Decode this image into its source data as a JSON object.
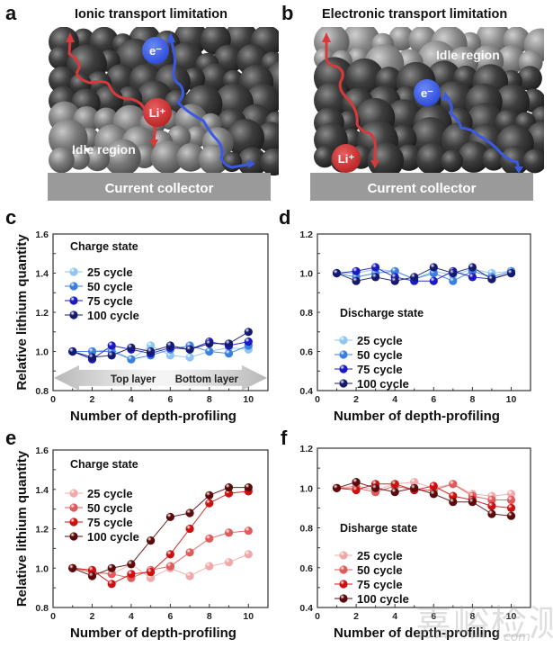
{
  "panels": {
    "a": {
      "letter": "a",
      "title": "Ionic transport limitation",
      "idle_label": "Idle region",
      "collector_label": "Current collector",
      "ion_label": "Li⁺",
      "electron_label": "e⁻"
    },
    "b": {
      "letter": "b",
      "title": "Electronic transport limitation",
      "idle_label": "Idle region",
      "collector_label": "Current collector",
      "ion_label": "Li⁺",
      "electron_label": "e⁻"
    },
    "c": {
      "letter": "c"
    },
    "d": {
      "letter": "d"
    },
    "e": {
      "letter": "e"
    },
    "f": {
      "letter": "f"
    }
  },
  "colors": {
    "blue_series": [
      "#8ec5f2",
      "#3a7fe0",
      "#1a1ac0",
      "#141a6e"
    ],
    "red_series": [
      "#f0a8a8",
      "#e05a5a",
      "#cc1010",
      "#5a0a0a"
    ],
    "ion_arrow": "#d63a3a",
    "electron_arrow": "#3a5ae6",
    "collector": "#9a9a9a"
  },
  "watermark": {
    "text": "嘉峪检测网",
    "sub": "com"
  },
  "chart_data": [
    {
      "id": "c",
      "type": "line",
      "title": "Charge state",
      "xlabel": "Number of depth-profiling",
      "ylabel": "Relative lithium quantity",
      "xlim": [
        0,
        11
      ],
      "ylim": [
        0.8,
        1.6
      ],
      "xticks": [
        0,
        2,
        4,
        6,
        8,
        10
      ],
      "yticks": [
        0.8,
        1.0,
        1.2,
        1.4,
        1.6
      ],
      "ytick_labels": [
        "0.8",
        "1.0",
        "1.2",
        "1.4",
        "1.6"
      ],
      "legend_position": "top-left",
      "grid": false,
      "annotation": {
        "left": "Top layer",
        "right": "Bottom layer"
      },
      "x": [
        1,
        2,
        3,
        4,
        5,
        6,
        7,
        8,
        9,
        10
      ],
      "series": [
        {
          "name": "25 cycle",
          "values": [
            1.0,
            1.0,
            1.01,
            0.96,
            1.03,
            0.98,
            0.97,
            1.0,
            1.02,
            1.01
          ]
        },
        {
          "name": "50 cycle",
          "values": [
            1.0,
            1.0,
            1.0,
            0.96,
            0.98,
            1.01,
            1.03,
            1.0,
            0.99,
            1.03
          ]
        },
        {
          "name": "75 cycle",
          "values": [
            1.0,
            0.96,
            1.03,
            1.01,
            0.99,
            1.02,
            1.01,
            1.05,
            1.03,
            1.05
          ]
        },
        {
          "name": "100 cycle",
          "values": [
            1.0,
            0.97,
            0.98,
            1.02,
            1.0,
            1.03,
            1.01,
            1.04,
            1.04,
            1.1
          ]
        }
      ]
    },
    {
      "id": "d",
      "type": "line",
      "title": "Discharge state",
      "xlabel": "Number of depth-profiling",
      "ylabel": "",
      "xlim": [
        0,
        11
      ],
      "ylim": [
        0.4,
        1.2
      ],
      "xticks": [
        0,
        2,
        4,
        6,
        8,
        10
      ],
      "yticks": [
        0.4,
        0.6,
        0.8,
        1.0,
        1.2
      ],
      "ytick_labels": [
        "0.4",
        "0.6",
        "0.8",
        "1.0",
        "1.2"
      ],
      "legend_position": "bottom-left",
      "grid": false,
      "x": [
        1,
        2,
        3,
        4,
        5,
        6,
        7,
        8,
        9,
        10
      ],
      "series": [
        {
          "name": "25 cycle",
          "values": [
            1.0,
            1.0,
            1.02,
            1.01,
            0.97,
            1.01,
            0.99,
            1.02,
            1.0,
            1.01
          ]
        },
        {
          "name": "50 cycle",
          "values": [
            1.0,
            0.98,
            1.0,
            1.01,
            0.97,
            1.0,
            0.96,
            1.01,
            0.98,
            1.01
          ]
        },
        {
          "name": "75 cycle",
          "values": [
            1.0,
            1.01,
            1.03,
            0.98,
            0.96,
            0.96,
            1.01,
            0.98,
            0.97,
            1.0
          ]
        },
        {
          "name": "100 cycle",
          "values": [
            1.0,
            0.96,
            0.98,
            0.96,
            0.98,
            1.03,
            1.0,
            1.03,
            0.97,
            1.0
          ]
        }
      ]
    },
    {
      "id": "e",
      "type": "line",
      "title": "Charge state",
      "xlabel": "Number of depth-profiling",
      "ylabel": "Relative lithium quantity",
      "xlim": [
        0,
        11
      ],
      "ylim": [
        0.8,
        1.6
      ],
      "xticks": [
        0,
        2,
        4,
        6,
        8,
        10
      ],
      "yticks": [
        0.8,
        1.0,
        1.2,
        1.4,
        1.6
      ],
      "ytick_labels": [
        "0.8",
        "1.0",
        "1.2",
        "1.4",
        "1.6"
      ],
      "legend_position": "top-left",
      "grid": false,
      "x": [
        1,
        2,
        3,
        4,
        5,
        6,
        7,
        8,
        9,
        10
      ],
      "series": [
        {
          "name": "25 cycle",
          "values": [
            1.0,
            0.98,
            0.97,
            1.02,
            0.95,
            1.0,
            0.96,
            1.01,
            1.03,
            1.07
          ]
        },
        {
          "name": "50 cycle",
          "values": [
            1.0,
            0.98,
            0.97,
            0.95,
            0.99,
            1.01,
            1.08,
            1.15,
            1.18,
            1.19
          ]
        },
        {
          "name": "75 cycle",
          "values": [
            1.0,
            0.99,
            0.92,
            0.97,
            0.98,
            1.07,
            1.2,
            1.33,
            1.38,
            1.39
          ]
        },
        {
          "name": "100 cycle",
          "values": [
            1.0,
            0.96,
            1.0,
            1.02,
            1.14,
            1.26,
            1.28,
            1.37,
            1.41,
            1.41
          ]
        }
      ]
    },
    {
      "id": "f",
      "type": "line",
      "title": "Disharge state",
      "xlabel": "Number of depth-profiling",
      "ylabel": "",
      "xlim": [
        0,
        11
      ],
      "ylim": [
        0.4,
        1.2
      ],
      "xticks": [
        0,
        2,
        4,
        6,
        8,
        10
      ],
      "yticks": [
        0.4,
        0.6,
        0.8,
        1.0,
        1.2
      ],
      "ytick_labels": [
        "0.4",
        "0.6",
        "0.8",
        "1.0",
        "1.2"
      ],
      "legend_position": "bottom-left",
      "grid": false,
      "x": [
        1,
        2,
        3,
        4,
        5,
        6,
        7,
        8,
        9,
        10
      ],
      "series": [
        {
          "name": "25 cycle",
          "values": [
            1.0,
            1.01,
            0.99,
            1.02,
            1.03,
            1.0,
            1.02,
            0.97,
            0.96,
            0.97
          ]
        },
        {
          "name": "50 cycle",
          "values": [
            1.0,
            1.0,
            0.98,
            1.01,
            0.99,
            0.99,
            1.02,
            0.96,
            0.94,
            0.94
          ]
        },
        {
          "name": "75 cycle",
          "values": [
            1.0,
            0.99,
            1.02,
            1.02,
            0.99,
            1.01,
            0.96,
            0.94,
            0.91,
            0.9
          ]
        },
        {
          "name": "100 cycle",
          "values": [
            1.0,
            1.03,
            1.0,
            0.98,
            1.0,
            0.97,
            0.93,
            0.93,
            0.87,
            0.86
          ]
        }
      ]
    }
  ]
}
